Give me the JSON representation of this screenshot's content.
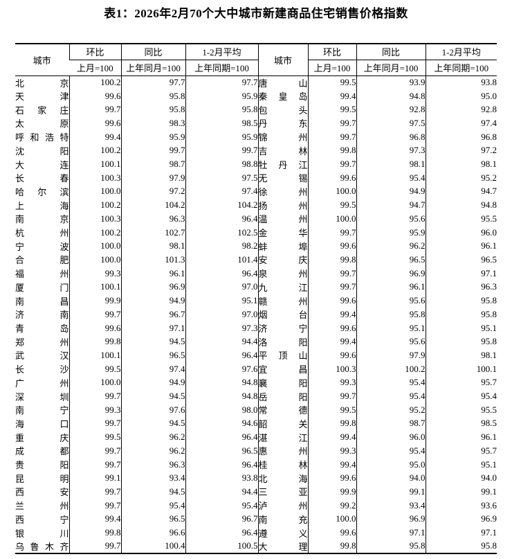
{
  "title": "表1：2026年2月70个大中城市新建商品住宅销售价格指数",
  "table": {
    "columns": {
      "city": "城市",
      "mom": "环比",
      "mom_base": "上月=100",
      "yoy": "同比",
      "yoy_base": "上年同月=100",
      "avg": "1-2月平均",
      "avg_base": "上年同期=100"
    },
    "left_rows": [
      {
        "city": "北京",
        "mom": "100.2",
        "yoy": "97.7",
        "avg": "97.7"
      },
      {
        "city": "天津",
        "mom": "99.6",
        "yoy": "95.8",
        "avg": "95.9"
      },
      {
        "city": "石家庄",
        "mom": "99.7",
        "yoy": "95.8",
        "avg": "95.8"
      },
      {
        "city": "太原",
        "mom": "99.6",
        "yoy": "98.3",
        "avg": "98.5"
      },
      {
        "city": "呼和浩特",
        "mom": "99.4",
        "yoy": "95.9",
        "avg": "95.9"
      },
      {
        "city": "沈阳",
        "mom": "100.2",
        "yoy": "99.7",
        "avg": "99.7"
      },
      {
        "city": "大连",
        "mom": "100.1",
        "yoy": "98.7",
        "avg": "98.8"
      },
      {
        "city": "长春",
        "mom": "100.3",
        "yoy": "97.9",
        "avg": "97.5"
      },
      {
        "city": "哈尔滨",
        "mom": "100.0",
        "yoy": "97.2",
        "avg": "97.4"
      },
      {
        "city": "上海",
        "mom": "100.2",
        "yoy": "104.2",
        "avg": "104.2"
      },
      {
        "city": "南京",
        "mom": "100.3",
        "yoy": "96.3",
        "avg": "96.4"
      },
      {
        "city": "杭州",
        "mom": "100.2",
        "yoy": "102.7",
        "avg": "102.5"
      },
      {
        "city": "宁波",
        "mom": "100.0",
        "yoy": "98.1",
        "avg": "98.2"
      },
      {
        "city": "合肥",
        "mom": "100.0",
        "yoy": "101.3",
        "avg": "101.4"
      },
      {
        "city": "福州",
        "mom": "99.3",
        "yoy": "96.1",
        "avg": "96.4"
      },
      {
        "city": "厦门",
        "mom": "100.1",
        "yoy": "96.9",
        "avg": "97.0"
      },
      {
        "city": "南昌",
        "mom": "99.9",
        "yoy": "94.9",
        "avg": "95.1"
      },
      {
        "city": "济南",
        "mom": "99.7",
        "yoy": "96.7",
        "avg": "97.0"
      },
      {
        "city": "青岛",
        "mom": "99.6",
        "yoy": "97.1",
        "avg": "97.3"
      },
      {
        "city": "郑州",
        "mom": "99.8",
        "yoy": "94.5",
        "avg": "94.4"
      },
      {
        "city": "武汉",
        "mom": "100.1",
        "yoy": "96.5",
        "avg": "96.4"
      },
      {
        "city": "长沙",
        "mom": "99.5",
        "yoy": "97.4",
        "avg": "97.6"
      },
      {
        "city": "广州",
        "mom": "100.0",
        "yoy": "94.9",
        "avg": "94.8"
      },
      {
        "city": "深圳",
        "mom": "99.7",
        "yoy": "94.5",
        "avg": "94.8"
      },
      {
        "city": "南宁",
        "mom": "99.3",
        "yoy": "97.6",
        "avg": "98.0"
      },
      {
        "city": "海口",
        "mom": "99.7",
        "yoy": "94.5",
        "avg": "94.6"
      },
      {
        "city": "重庆",
        "mom": "99.5",
        "yoy": "96.2",
        "avg": "96.4"
      },
      {
        "city": "成都",
        "mom": "99.7",
        "yoy": "96.2",
        "avg": "96.5"
      },
      {
        "city": "贵阳",
        "mom": "99.7",
        "yoy": "96.3",
        "avg": "96.4"
      },
      {
        "city": "昆明",
        "mom": "99.1",
        "yoy": "93.4",
        "avg": "93.8"
      },
      {
        "city": "西安",
        "mom": "99.7",
        "yoy": "94.5",
        "avg": "94.4"
      },
      {
        "city": "兰州",
        "mom": "99.7",
        "yoy": "95.4",
        "avg": "95.4"
      },
      {
        "city": "西宁",
        "mom": "99.4",
        "yoy": "96.5",
        "avg": "96.7"
      },
      {
        "city": "银川",
        "mom": "99.8",
        "yoy": "96.6",
        "avg": "96.4"
      },
      {
        "city": "乌鲁木齐",
        "mom": "99.7",
        "yoy": "100.4",
        "avg": "100.5"
      }
    ],
    "right_rows": [
      {
        "city": "唐山",
        "mom": "99.5",
        "yoy": "93.9",
        "avg": "93.8"
      },
      {
        "city": "秦皇岛",
        "mom": "99.4",
        "yoy": "94.8",
        "avg": "95.0"
      },
      {
        "city": "包头",
        "mom": "99.5",
        "yoy": "92.8",
        "avg": "92.8"
      },
      {
        "city": "丹东",
        "mom": "99.7",
        "yoy": "97.5",
        "avg": "97.4"
      },
      {
        "city": "锦州",
        "mom": "99.7",
        "yoy": "96.8",
        "avg": "96.8"
      },
      {
        "city": "吉林",
        "mom": "99.8",
        "yoy": "97.3",
        "avg": "97.2"
      },
      {
        "city": "牡丹江",
        "mom": "99.7",
        "yoy": "98.1",
        "avg": "98.1"
      },
      {
        "city": "无锡",
        "mom": "99.6",
        "yoy": "95.4",
        "avg": "95.2"
      },
      {
        "city": "徐州",
        "mom": "100.0",
        "yoy": "94.9",
        "avg": "94.7"
      },
      {
        "city": "扬州",
        "mom": "99.5",
        "yoy": "94.7",
        "avg": "94.8"
      },
      {
        "city": "温州",
        "mom": "100.0",
        "yoy": "95.6",
        "avg": "95.5"
      },
      {
        "city": "金华",
        "mom": "99.7",
        "yoy": "95.9",
        "avg": "96.0"
      },
      {
        "city": "蚌埠",
        "mom": "99.6",
        "yoy": "96.2",
        "avg": "96.1"
      },
      {
        "city": "安庆",
        "mom": "99.8",
        "yoy": "96.5",
        "avg": "96.5"
      },
      {
        "city": "泉州",
        "mom": "99.7",
        "yoy": "96.9",
        "avg": "97.1"
      },
      {
        "city": "九江",
        "mom": "99.7",
        "yoy": "96.1",
        "avg": "96.3"
      },
      {
        "city": "赣州",
        "mom": "99.6",
        "yoy": "95.6",
        "avg": "95.8"
      },
      {
        "city": "烟台",
        "mom": "99.4",
        "yoy": "95.8",
        "avg": "95.8"
      },
      {
        "city": "济宁",
        "mom": "99.6",
        "yoy": "95.1",
        "avg": "95.1"
      },
      {
        "city": "洛阳",
        "mom": "99.4",
        "yoy": "95.6",
        "avg": "95.8"
      },
      {
        "city": "平顶山",
        "mom": "99.6",
        "yoy": "97.9",
        "avg": "98.1"
      },
      {
        "city": "宜昌",
        "mom": "100.3",
        "yoy": "100.2",
        "avg": "100.1"
      },
      {
        "city": "襄阳",
        "mom": "99.3",
        "yoy": "95.4",
        "avg": "95.7"
      },
      {
        "city": "岳阳",
        "mom": "99.7",
        "yoy": "95.4",
        "avg": "95.4"
      },
      {
        "city": "常德",
        "mom": "99.5",
        "yoy": "95.2",
        "avg": "95.5"
      },
      {
        "city": "韶关",
        "mom": "99.8",
        "yoy": "98.7",
        "avg": "98.5"
      },
      {
        "city": "湛江",
        "mom": "99.4",
        "yoy": "96.0",
        "avg": "96.1"
      },
      {
        "city": "惠州",
        "mom": "99.3",
        "yoy": "95.4",
        "avg": "95.7"
      },
      {
        "city": "桂林",
        "mom": "99.4",
        "yoy": "95.0",
        "avg": "95.1"
      },
      {
        "city": "北海",
        "mom": "99.6",
        "yoy": "94.0",
        "avg": "94.0"
      },
      {
        "city": "三亚",
        "mom": "99.9",
        "yoy": "99.1",
        "avg": "99.1"
      },
      {
        "city": "泸州",
        "mom": "99.2",
        "yoy": "93.4",
        "avg": "93.6"
      },
      {
        "city": "南充",
        "mom": "100.0",
        "yoy": "96.9",
        "avg": "96.9"
      },
      {
        "city": "遵义",
        "mom": "99.6",
        "yoy": "97.1",
        "avg": "97.1"
      },
      {
        "city": "大理",
        "mom": "99.8",
        "yoy": "95.8",
        "avg": "95.8"
      }
    ]
  }
}
